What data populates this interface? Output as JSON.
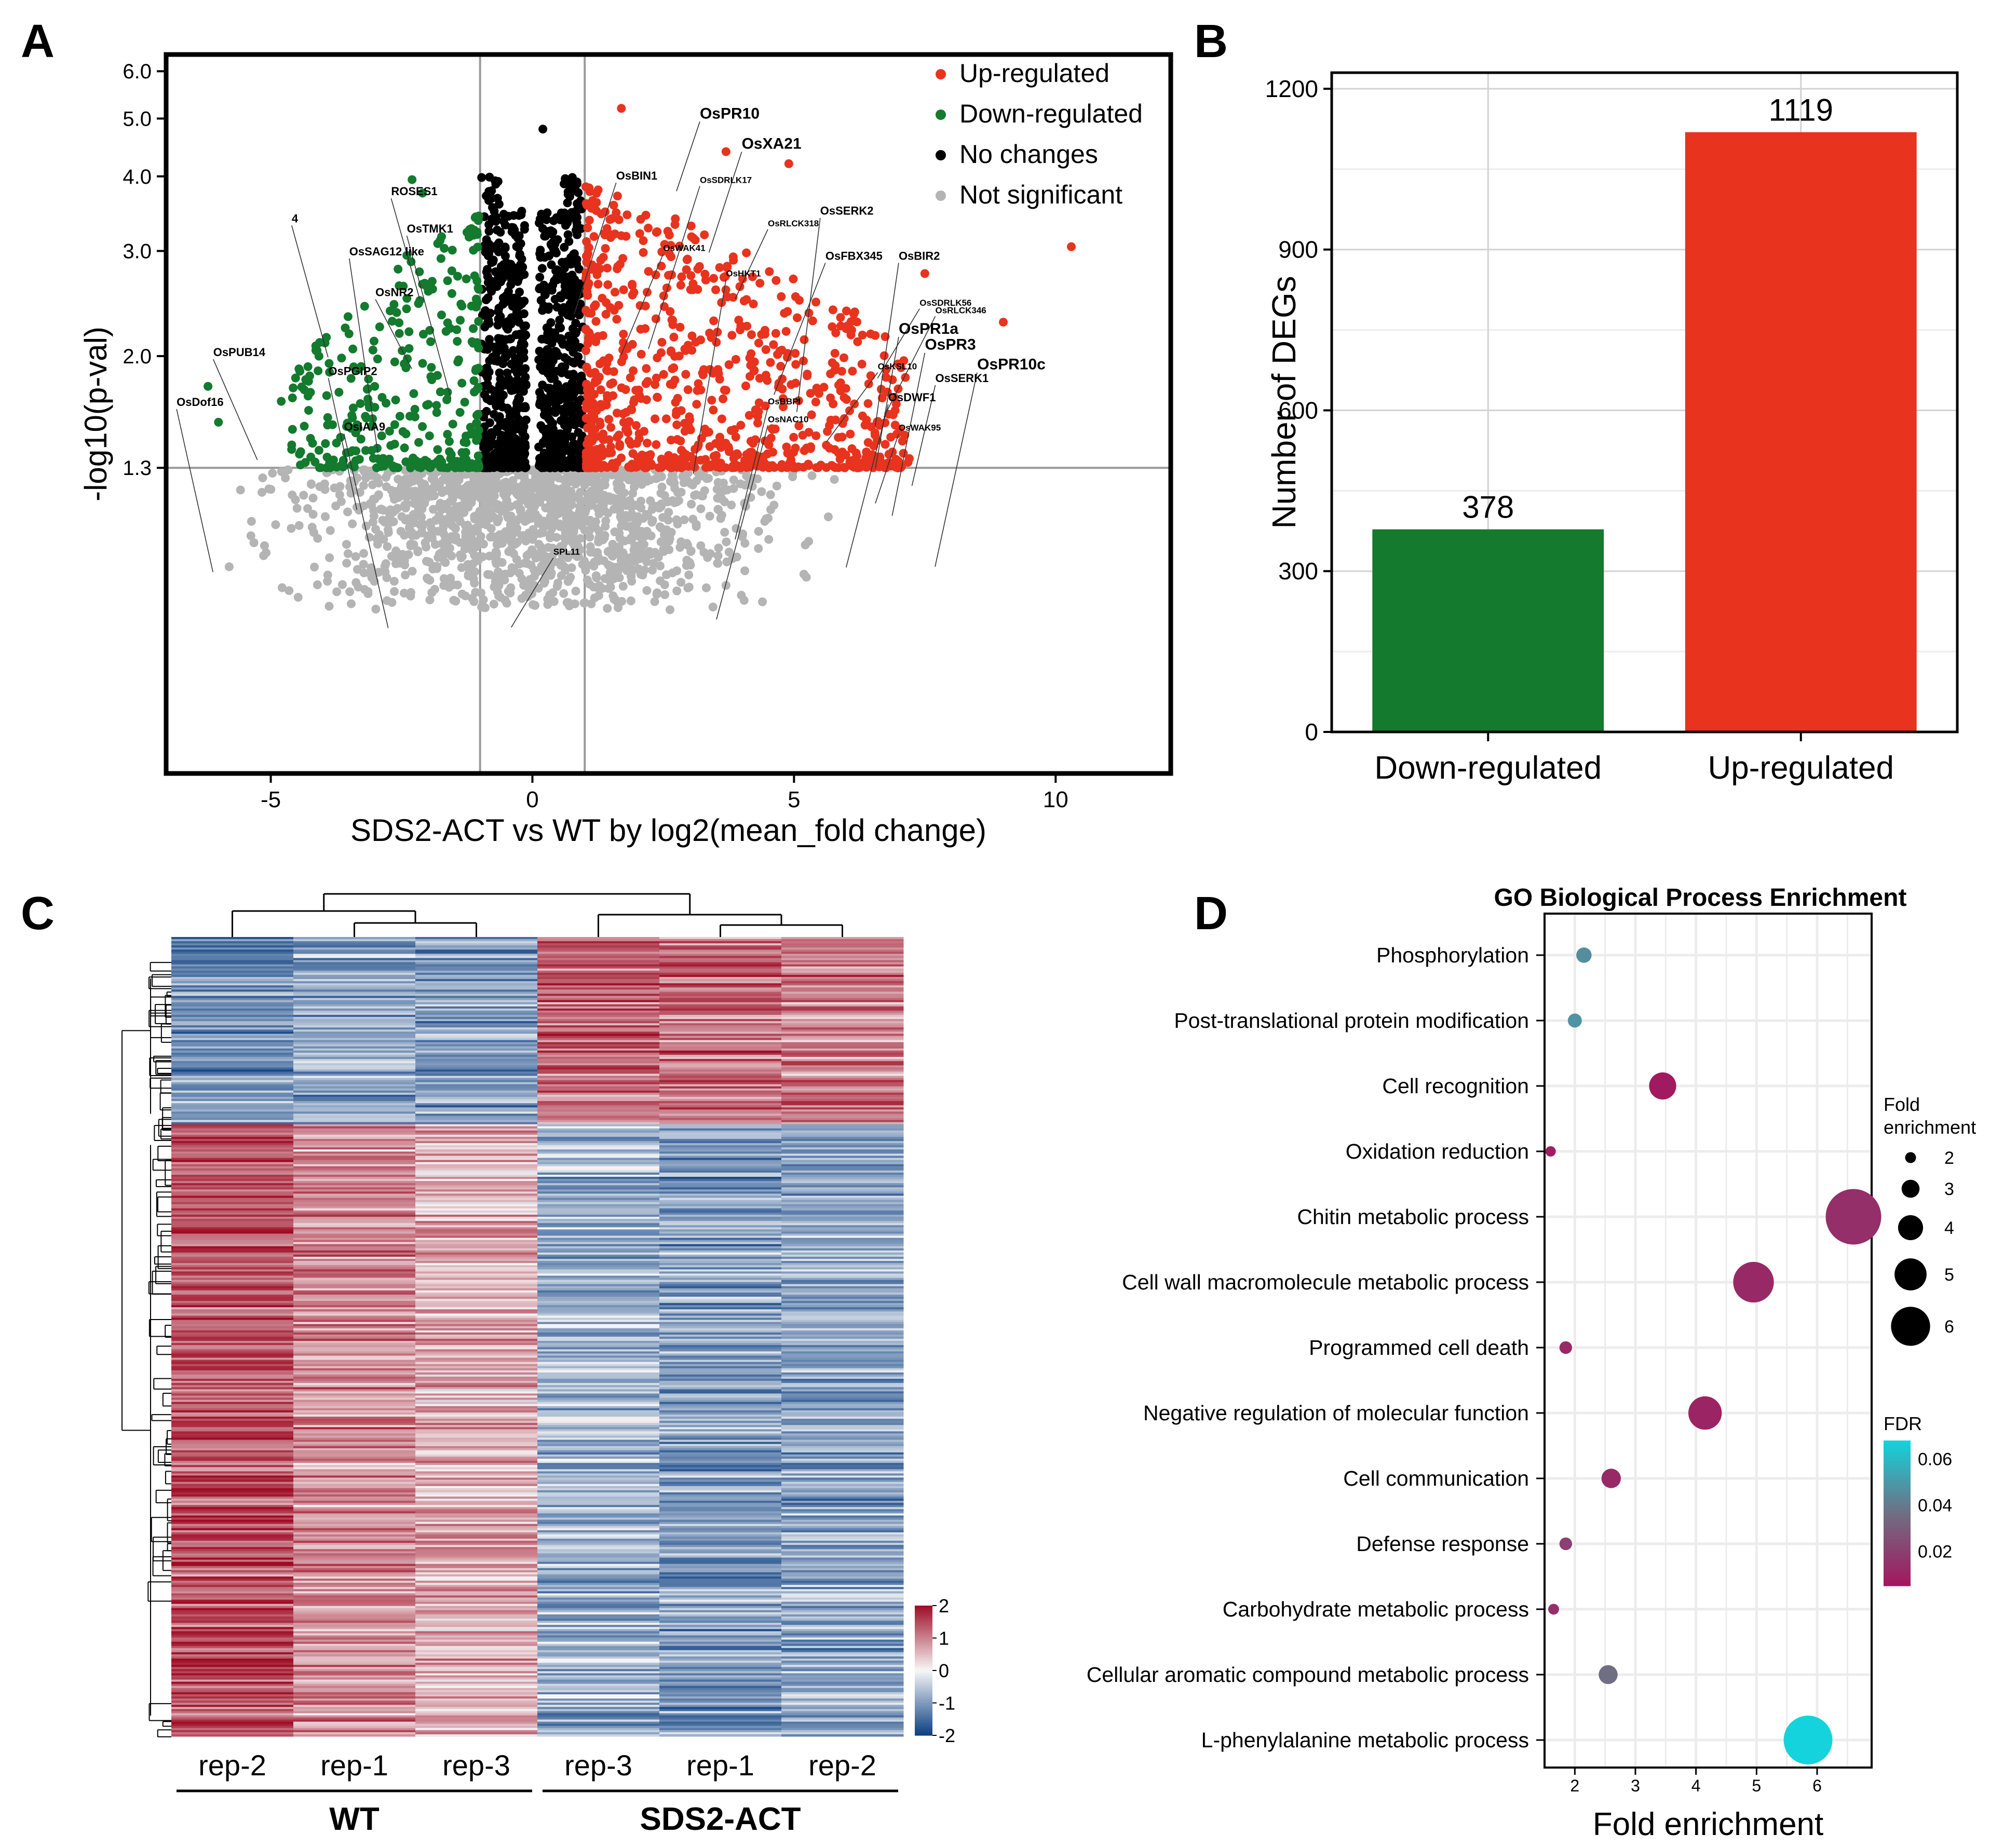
{
  "panels": {
    "a": "A",
    "b": "B",
    "c": "C",
    "d": "D"
  },
  "chart_data": [
    {
      "type": "scatter",
      "panel": "A",
      "xlabel": "SDS2-ACT vs WT by log2(mean_fold change)",
      "ylabel": "-log10(p-val)",
      "xlim": [
        -7,
        12.2
      ],
      "ylim": [
        0.4,
        6.4
      ],
      "x_ticks": [
        "-5",
        "0",
        "5",
        "10"
      ],
      "x_tick_values": [
        -5,
        0,
        5,
        10
      ],
      "y_ticks": [
        "1.3",
        "2.0",
        "3.0",
        "4.0",
        "5.0",
        "6.0"
      ],
      "y_tick_values": [
        1.3,
        2.0,
        3.0,
        4.0,
        5.0,
        6.0
      ],
      "y_scale": "log",
      "vlines": [
        -1,
        1
      ],
      "hline": 1.3,
      "legend_position": "top-right",
      "series": [
        {
          "name": "Up-regulated",
          "color": "#e8331e"
        },
        {
          "name": "Down-regulated",
          "color": "#137a2e"
        },
        {
          "name": "No changes",
          "color": "#000000"
        },
        {
          "name": "Not significant",
          "color": "#b4b4b4"
        }
      ],
      "outlier_points": [
        {
          "x": 10.3,
          "y": 3.05,
          "cls": "up"
        },
        {
          "x": 9.0,
          "y": 2.28,
          "cls": "up"
        },
        {
          "x": 7.5,
          "y": 2.75,
          "cls": "up"
        },
        {
          "x": 4.9,
          "y": 4.2,
          "cls": "up"
        },
        {
          "x": 3.7,
          "y": 4.4,
          "cls": "up"
        },
        {
          "x": 1.7,
          "y": 5.2,
          "cls": "up"
        },
        {
          "x": 0.2,
          "y": 4.8,
          "cls": "none"
        },
        {
          "x": -6.2,
          "y": 1.78,
          "cls": "down"
        },
        {
          "x": -6.0,
          "y": 1.55,
          "cls": "down"
        },
        {
          "x": -4.8,
          "y": 1.68,
          "cls": "down"
        },
        {
          "x": -2.3,
          "y": 3.95,
          "cls": "down"
        },
        {
          "x": -2.1,
          "y": 3.75,
          "cls": "down"
        },
        {
          "x": -2.4,
          "y": 2.95,
          "cls": "down"
        },
        {
          "x": -4.6,
          "y": 1.42,
          "cls": "down"
        }
      ],
      "gene_labels": [
        {
          "name": "OsPR10",
          "x": 3.2,
          "y": 5.0,
          "size": "large"
        },
        {
          "name": "OsXA21",
          "x": 4.0,
          "y": 4.45,
          "size": "large"
        },
        {
          "name": "OsBIN1",
          "x": 1.6,
          "y": 3.95,
          "size": "small"
        },
        {
          "name": "OsSDRLK17",
          "x": 3.2,
          "y": 3.9,
          "size": "tiny"
        },
        {
          "name": "OsSERK2",
          "x": 5.5,
          "y": 3.45,
          "size": "small"
        },
        {
          "name": "OsRLCK318",
          "x": 4.5,
          "y": 3.3,
          "size": "tiny"
        },
        {
          "name": "OsWAK41",
          "x": 2.5,
          "y": 3.0,
          "size": "tiny"
        },
        {
          "name": "OsFBX345",
          "x": 5.6,
          "y": 2.9,
          "size": "small"
        },
        {
          "name": "OsBIR2",
          "x": 7.0,
          "y": 2.9,
          "size": "small"
        },
        {
          "name": "OsHKT1",
          "x": 3.7,
          "y": 2.72,
          "size": "tiny"
        },
        {
          "name": "OsSDRLK56",
          "x": 7.4,
          "y": 2.43,
          "size": "tiny"
        },
        {
          "name": "OsRLCK346",
          "x": 7.7,
          "y": 2.36,
          "size": "tiny"
        },
        {
          "name": "OsPR1a",
          "x": 7.0,
          "y": 2.18,
          "size": "large"
        },
        {
          "name": "OsPR3",
          "x": 7.5,
          "y": 2.05,
          "size": "large"
        },
        {
          "name": "OsPR10c",
          "x": 8.5,
          "y": 1.9,
          "size": "large"
        },
        {
          "name": "OsKSL10",
          "x": 6.6,
          "y": 1.9,
          "size": "tiny"
        },
        {
          "name": "OsSERK1",
          "x": 7.7,
          "y": 1.81,
          "size": "small"
        },
        {
          "name": "OsBBPI",
          "x": 4.5,
          "y": 1.66,
          "size": "tiny"
        },
        {
          "name": "OsDWF1",
          "x": 6.8,
          "y": 1.68,
          "size": "small"
        },
        {
          "name": "OsNAC10",
          "x": 4.5,
          "y": 1.55,
          "size": "tiny"
        },
        {
          "name": "OsWAK95",
          "x": 7.0,
          "y": 1.5,
          "size": "tiny"
        },
        {
          "name": "ROSES1",
          "x": -2.7,
          "y": 3.72,
          "size": "small"
        },
        {
          "name": "4",
          "x": -4.6,
          "y": 3.35,
          "size": "small"
        },
        {
          "name": "OsTMK1",
          "x": -2.4,
          "y": 3.22,
          "size": "small"
        },
        {
          "name": "OsSAG12 like",
          "x": -3.5,
          "y": 2.95,
          "size": "small"
        },
        {
          "name": "OsNR2",
          "x": -3.0,
          "y": 2.52,
          "size": "small"
        },
        {
          "name": "OsPUB14",
          "x": -6.1,
          "y": 2.0,
          "size": "small"
        },
        {
          "name": "OsPGIP2",
          "x": -3.9,
          "y": 1.86,
          "size": "small"
        },
        {
          "name": "OsDof16",
          "x": -6.8,
          "y": 1.65,
          "size": "small"
        },
        {
          "name": "OsIAA9",
          "x": -3.6,
          "y": 1.5,
          "size": "small"
        },
        {
          "name": "SPL11",
          "x": 0.4,
          "y": 0.93,
          "size": "tiny"
        }
      ]
    },
    {
      "type": "bar",
      "panel": "B",
      "categories": [
        "Down-regulated",
        "Up-regulated"
      ],
      "values": [
        378,
        1119
      ],
      "value_labels": [
        "378",
        "1119"
      ],
      "colors": [
        "#137a2e",
        "#e8331e"
      ],
      "xlabel": "",
      "ylabel": "Number of DEGs",
      "ylim": [
        0,
        1230
      ],
      "y_ticks": [
        "0",
        "300",
        "600",
        "900",
        "1200"
      ],
      "y_tick_values": [
        0,
        300,
        600,
        900,
        1200
      ]
    },
    {
      "type": "heatmap",
      "panel": "C",
      "columns": [
        "rep-2",
        "rep-1",
        "rep-3",
        "rep-3",
        "rep-1",
        "rep-2"
      ],
      "groups": [
        {
          "name": "WT",
          "span": 3
        },
        {
          "name": "SDS2-ACT",
          "span": 3
        }
      ],
      "color_scale": {
        "min": -2,
        "max": 2,
        "low": "#0a3e82",
        "mid": "#f7f7f7",
        "high": "#9e0c24"
      },
      "colorbar_ticks": [
        "2",
        "1",
        "0",
        "-1",
        "-2"
      ],
      "colorbar_tick_values": [
        2,
        1,
        0,
        -1,
        -2
      ],
      "gene_clusters": [
        {
          "fraction": 0.233,
          "mean_z": [
            -1.1,
            -0.9,
            -1.0,
            1.2,
            1.1,
            1.0
          ]
        },
        {
          "fraction": 0.767,
          "mean_z": [
            1.4,
            0.9,
            0.6,
            -0.8,
            -1.0,
            -0.9
          ]
        }
      ]
    },
    {
      "type": "scatter",
      "panel": "D",
      "title": "GO Biological Process Enrichment",
      "xlabel": "Fold enrichment",
      "ylabel": "",
      "xlim": [
        1.5,
        6.9
      ],
      "x_ticks": [
        "2",
        "3",
        "4",
        "5",
        "6"
      ],
      "x_tick_values": [
        2,
        3,
        4,
        5,
        6
      ],
      "categories": [
        "Phosphorylation",
        "Post-translational protein modification",
        "Cell recognition",
        "Oxidation reduction",
        "Chitin metabolic process",
        "Cell wall macromolecule metabolic process",
        "Programmed cell death",
        "Negative regulation of molecular function",
        "Cell communication",
        "Defense response",
        "Carbohydrate metabolic process",
        "Cellular aromatic compound metabolic process",
        "L-phenylalanine metabolic process"
      ],
      "fold_enrichment": [
        2.15,
        2.0,
        3.45,
        1.6,
        6.6,
        4.95,
        1.85,
        4.15,
        2.6,
        1.85,
        1.65,
        2.55,
        5.85
      ],
      "fdr": [
        0.046,
        0.048,
        0.006,
        0.008,
        0.014,
        0.012,
        0.012,
        0.01,
        0.012,
        0.02,
        0.014,
        0.036,
        0.068
      ],
      "size_legend_title": "Fold enrichment",
      "size_legend_labels": [
        "2",
        "3",
        "4",
        "5",
        "6"
      ],
      "size_legend_values": [
        2,
        3,
        4,
        5,
        6
      ],
      "color_legend_title": "FDR",
      "color_legend_labels": [
        "0.06",
        "0.04",
        "0.02"
      ],
      "color_legend_values": [
        0.06,
        0.04,
        0.02
      ],
      "color_low": "#a3165e",
      "color_mid": "#6f6f83",
      "color_high": "#14d3dd"
    }
  ]
}
